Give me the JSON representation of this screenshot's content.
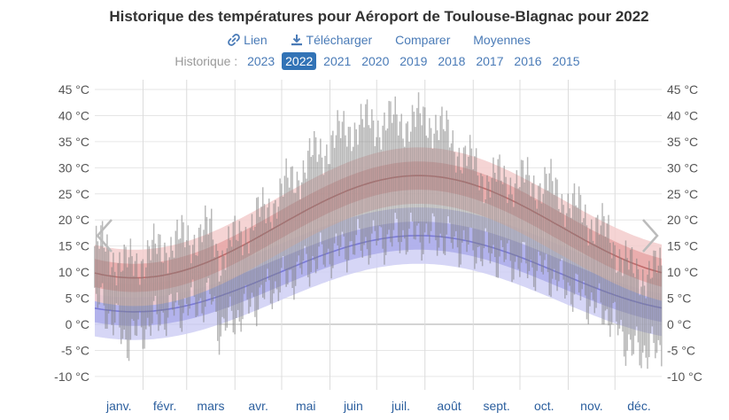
{
  "title": "Historique des températures pour Aéroport de Toulouse-Blagnac pour 2022",
  "links": [
    {
      "label": "Lien",
      "icon": "link-icon"
    },
    {
      "label": "Télécharger",
      "icon": "download-icon"
    },
    {
      "label": "Comparer",
      "icon": ""
    },
    {
      "label": "Moyennes",
      "icon": ""
    }
  ],
  "history_label": "Historique :",
  "years": [
    "2023",
    "2022",
    "2021",
    "2020",
    "2019",
    "2018",
    "2017",
    "2016",
    "2015"
  ],
  "selected_year": "2022",
  "colors": {
    "accent": "#3273b6",
    "link": "#4a7bb7",
    "grid": "#e6e6e6",
    "zero_line": "#aaaaaa",
    "high_band_outer": "#f3cccc",
    "high_band_inner": "#e6a3a3",
    "high_line": "#c06c6c",
    "low_band_outer": "#cfcff5",
    "low_band_inner": "#a9a9ea",
    "low_line": "#7a7ad6",
    "bar": "#808080"
  },
  "chart_data": {
    "type": "range-bar-with-bands",
    "title": "Historique des températures pour Aéroport de Toulouse-Blagnac pour 2022",
    "y_unit": "°C",
    "ylim": [
      -10,
      45
    ],
    "y_ticks": [
      45,
      40,
      35,
      30,
      25,
      20,
      15,
      10,
      5,
      0,
      -5,
      -10
    ],
    "y_tick_labels": [
      "45 °C",
      "40 °C",
      "35 °C",
      "30 °C",
      "25 °C",
      "20 °C",
      "15 °C",
      "10 °C",
      "5 °C",
      "0 °C",
      "-5 °C",
      "-10 °C"
    ],
    "months": [
      "janv.",
      "févr.",
      "mars",
      "avr.",
      "mai",
      "juin",
      "juil.",
      "août",
      "sept.",
      "oct.",
      "nov.",
      "déc."
    ],
    "days": 365,
    "normals": {
      "avg_high": {
        "base": 18.7,
        "amp": 9.8,
        "peak_day": 208
      },
      "avg_low": {
        "base": 9.7,
        "amp": 7.3,
        "peak_day": 208
      },
      "band_inner_offset": 2.7,
      "band_outer_offset": 5.4
    },
    "daily_ranges_samples": [
      {
        "day": 5,
        "low": 4,
        "high": 15
      },
      {
        "day": 20,
        "low": -3,
        "high": 11
      },
      {
        "day": 45,
        "low": 2,
        "high": 15
      },
      {
        "day": 75,
        "low": 5,
        "high": 18
      },
      {
        "day": 80,
        "low": -1,
        "high": 13
      },
      {
        "day": 110,
        "low": 6,
        "high": 22
      },
      {
        "day": 140,
        "low": 12,
        "high": 32
      },
      {
        "day": 165,
        "low": 15,
        "high": 38
      },
      {
        "day": 198,
        "low": 17,
        "high": 39
      },
      {
        "day": 218,
        "low": 17,
        "high": 39
      },
      {
        "day": 250,
        "low": 14,
        "high": 28
      },
      {
        "day": 290,
        "low": 10,
        "high": 27
      },
      {
        "day": 330,
        "low": 2,
        "high": 17
      },
      {
        "day": 345,
        "low": -5,
        "high": 10
      }
    ]
  }
}
